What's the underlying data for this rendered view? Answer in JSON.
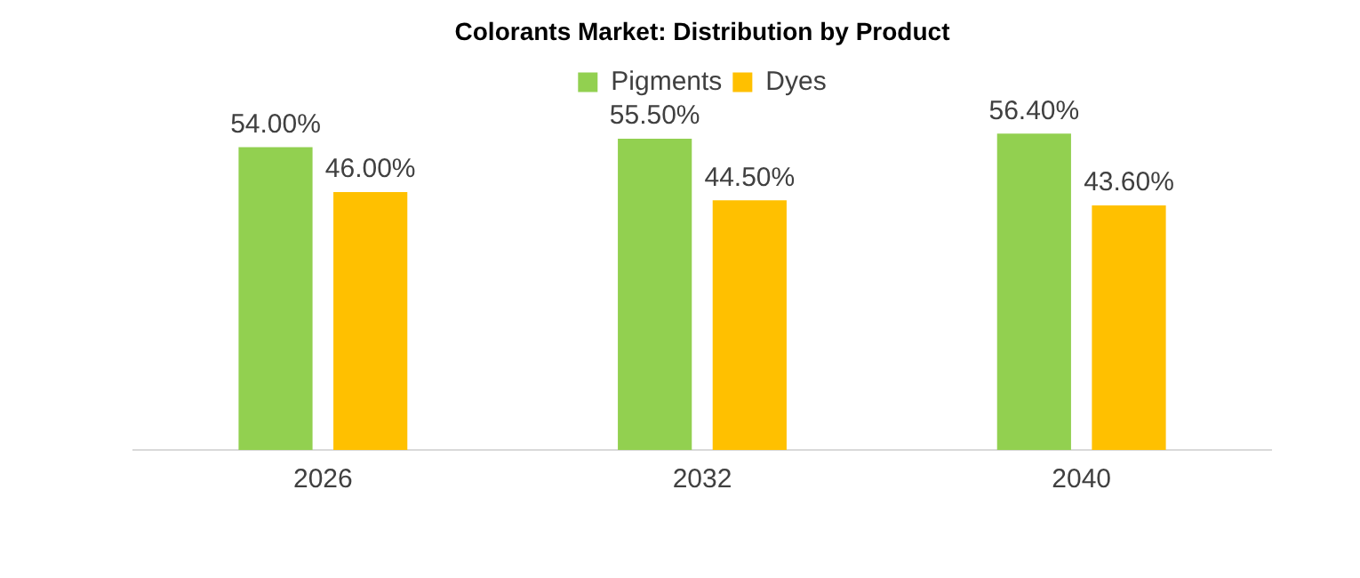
{
  "chart_data": {
    "type": "bar",
    "title": "Colorants Market: Distribution by Product",
    "categories": [
      "2026",
      "2032",
      "2040"
    ],
    "series": [
      {
        "name": "Pigments",
        "color": "#92d050",
        "values": [
          54.0,
          55.5,
          56.4
        ],
        "value_labels": [
          "54.00%",
          "55.50%",
          "56.40%"
        ]
      },
      {
        "name": "Dyes",
        "color": "#ffc000",
        "values": [
          46.0,
          44.5,
          43.6
        ],
        "value_labels": [
          "46.00%",
          "44.50%",
          "43.60%"
        ]
      }
    ],
    "tick_labels": "x",
    "grid": false,
    "legend": "top"
  }
}
